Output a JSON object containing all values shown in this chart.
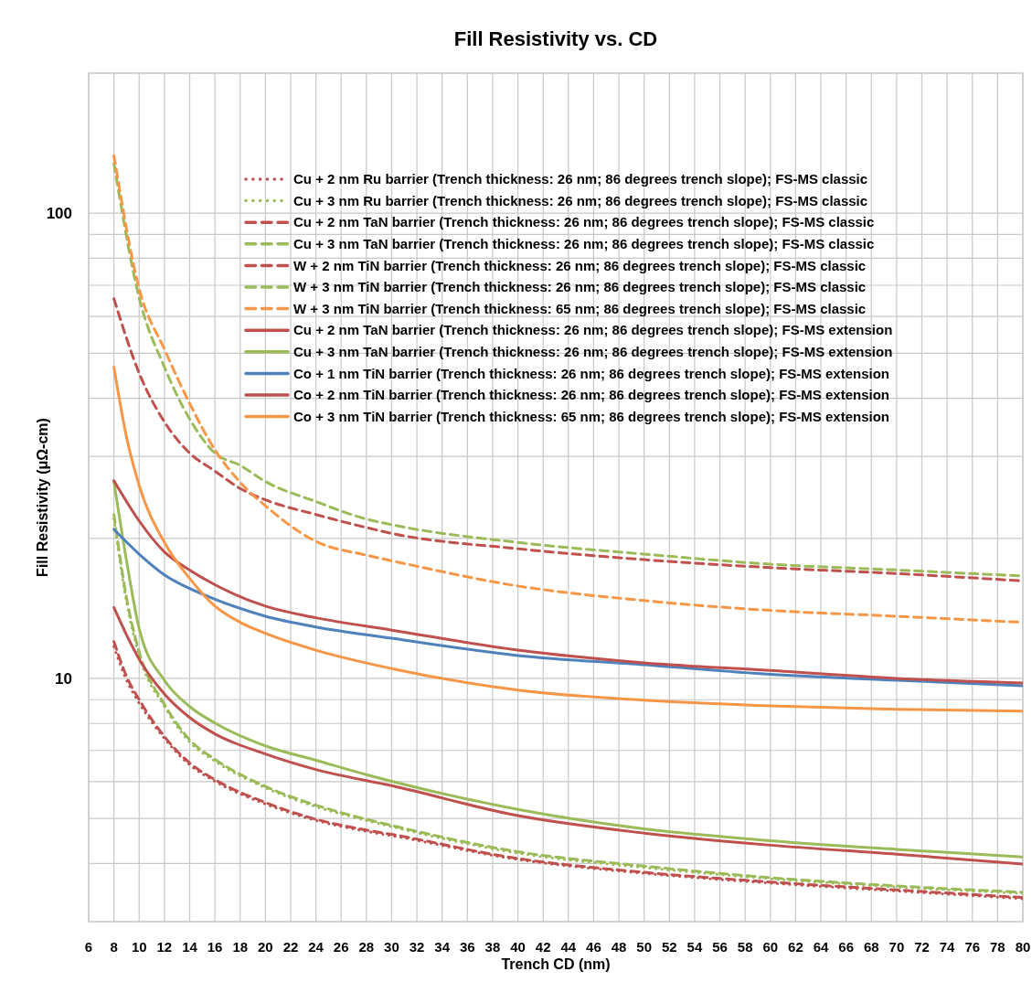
{
  "chart_data": {
    "type": "line",
    "title": "Fill Resistivity vs. CD",
    "xlabel": "Trench CD (nm)",
    "ylabel": "Fill Resistivity  (μΩ-cm)",
    "log": "y",
    "grid": true,
    "legend": "top right",
    "xlim": [
      6,
      80
    ],
    "xticks": [
      6,
      8,
      10,
      12,
      14,
      16,
      18,
      20,
      22,
      24,
      26,
      28,
      30,
      32,
      34,
      36,
      38,
      40,
      42,
      44,
      46,
      48,
      50,
      52,
      54,
      56,
      58,
      60,
      62,
      64,
      66,
      68,
      70,
      72,
      74,
      76,
      78,
      80
    ],
    "ylim": [
      3,
      200
    ],
    "yticks": [
      {
        "value": 3,
        "label": null
      },
      {
        "value": 4,
        "label": null
      },
      {
        "value": 5,
        "label": null
      },
      {
        "value": 6,
        "label": null
      },
      {
        "value": 7,
        "label": null
      },
      {
        "value": 8,
        "label": null
      },
      {
        "value": 9,
        "label": null
      },
      10,
      {
        "value": 20,
        "label": null
      },
      {
        "value": 30,
        "label": null
      },
      {
        "value": 40,
        "label": null
      },
      {
        "value": 50,
        "label": null
      },
      {
        "value": 60,
        "label": null
      },
      {
        "value": 70,
        "label": null
      },
      {
        "value": 80,
        "label": null
      },
      {
        "value": 90,
        "label": null
      },
      100,
      {
        "value": 200,
        "label": null
      }
    ],
    "series": [
      {
        "name": "Cu + 2 nm Ru barrier (Trench thickness: 26 nm; 86 degrees trench slope); FS-MS classic",
        "color": "#c0504d",
        "line_style": "dotted",
        "x": [
          8,
          9,
          10,
          12,
          14,
          16,
          20,
          24,
          28,
          30,
          40,
          50,
          60,
          70,
          80
        ],
        "values": [
          11.7,
          9.91,
          8.85,
          7.43,
          6.52,
          6.01,
          5.37,
          4.95,
          4.69,
          4.59,
          4.08,
          3.81,
          3.63,
          3.49,
          3.36
        ]
      },
      {
        "name": "Cu + 3 nm Ru barrier (Trench thickness: 26 nm; 86 degrees trench slope); FS-MS classic",
        "color": "#9bbb59",
        "line_style": "dotted",
        "x": [
          8,
          9,
          10,
          12,
          14,
          16,
          20,
          24,
          28,
          30,
          40,
          50,
          60,
          70,
          80
        ],
        "values": [
          22.0,
          14.6,
          11.2,
          8.7,
          7.3,
          6.64,
          5.82,
          5.3,
          4.95,
          4.8,
          4.21,
          3.92,
          3.71,
          3.56,
          3.45
        ]
      },
      {
        "name": "Cu + 2 nm TaN barrier (Trench thickness: 26 nm; 86 degrees trench slope); FS-MS classic",
        "color": "#c0504d",
        "line_style": "dashed",
        "x": [
          8,
          9,
          10,
          12,
          14,
          16,
          20,
          24,
          28,
          30,
          40,
          50,
          60,
          70,
          80
        ],
        "values": [
          12.0,
          10.1,
          9.0,
          7.5,
          6.58,
          6.06,
          5.41,
          4.98,
          4.72,
          4.62,
          4.1,
          3.83,
          3.65,
          3.51,
          3.38
        ]
      },
      {
        "name": "Cu + 3 nm TaN barrier (Trench thickness: 26 nm; 86 degrees trench slope); FS-MS classic",
        "color": "#9bbb59",
        "line_style": "dashed",
        "x": [
          8,
          9,
          10,
          12,
          14,
          16,
          20,
          24,
          28,
          30,
          40,
          50,
          60,
          70,
          80
        ],
        "values": [
          22.5,
          14.9,
          11.4,
          8.8,
          7.38,
          6.7,
          5.86,
          5.34,
          4.98,
          4.83,
          4.24,
          3.95,
          3.73,
          3.58,
          3.47
        ]
      },
      {
        "name": "W + 2 nm TiN barrier (Trench thickness: 26 nm; 86 degrees trench slope); FS-MS classic",
        "color": "#c0504d",
        "line_style": "dashed",
        "x": [
          8,
          10,
          12,
          14,
          16,
          18,
          20,
          24,
          28,
          30,
          40,
          50,
          60,
          70,
          80
        ],
        "values": [
          65.5,
          45.3,
          35.6,
          30.5,
          27.9,
          25.6,
          24.2,
          22.5,
          21.1,
          20.5,
          19.0,
          18.0,
          17.3,
          16.8,
          16.2
        ]
      },
      {
        "name": "W + 3 nm TiN barrier (Trench thickness: 26 nm; 86 degrees trench slope); FS-MS classic",
        "color": "#9bbb59",
        "line_style": "dashed",
        "x": [
          8,
          10,
          12,
          14,
          16,
          18,
          20,
          24,
          28,
          30,
          40,
          50,
          60,
          70,
          80
        ],
        "values": [
          128,
          65.8,
          46.7,
          36.1,
          30.5,
          28.7,
          26.5,
          24.0,
          22.0,
          21.4,
          19.6,
          18.5,
          17.6,
          17.1,
          16.6
        ]
      },
      {
        "name": "W + 3 nm TiN barrier (Trench thickness: 65 nm; 86 degrees trench slope); FS-MS classic",
        "color": "#f79646",
        "line_style": "dashed",
        "x": [
          8,
          10,
          12,
          14,
          16,
          18,
          20,
          24,
          28,
          30,
          40,
          50,
          60,
          70,
          80
        ],
        "values": [
          133,
          68.8,
          51,
          39,
          31,
          26.4,
          23.5,
          19.7,
          18.4,
          17.9,
          15.8,
          14.7,
          14.0,
          13.6,
          13.2
        ]
      },
      {
        "name": "Cu + 2 nm TaN barrier (Trench thickness: 26 nm; 86 degrees trench slope); FS-MS extension",
        "color": "#c0504d",
        "line_style": "solid",
        "x": [
          8,
          9,
          10,
          12,
          14,
          16,
          20,
          24,
          30,
          40,
          50,
          60,
          70,
          80
        ],
        "values": [
          14.2,
          12.4,
          11.0,
          9.26,
          8.24,
          7.6,
          6.88,
          6.37,
          5.88,
          5.07,
          4.65,
          4.38,
          4.19,
          3.99
        ]
      },
      {
        "name": "Cu + 3 nm TaN barrier (Trench thickness: 26 nm; 86 degrees trench slope); FS-MS extension",
        "color": "#9bbb59",
        "line_style": "solid",
        "x": [
          8,
          9,
          10,
          12,
          14,
          16,
          20,
          24,
          28,
          30,
          40,
          50,
          60,
          70,
          80
        ],
        "values": [
          26.5,
          17.9,
          12.8,
          9.91,
          8.7,
          8.02,
          7.16,
          6.67,
          6.21,
          6.01,
          5.23,
          4.75,
          4.48,
          4.29,
          4.13
        ]
      },
      {
        "name": "Co + 1 nm TiN barrier (Trench thickness: 26 nm; 86 degrees trench slope); FS-MS extension",
        "color": "#4f81bd",
        "line_style": "solid",
        "x": [
          8,
          10,
          12,
          14,
          16,
          20,
          24,
          30,
          40,
          50,
          60,
          70,
          80
        ],
        "values": [
          20.9,
          18.5,
          16.7,
          15.6,
          14.8,
          13.6,
          12.9,
          12.2,
          11.2,
          10.7,
          10.2,
          9.91,
          9.64
        ]
      },
      {
        "name": "Co + 2 nm TiN barrier (Trench thickness: 26 nm; 86 degrees trench slope); FS-MS extension",
        "color": "#c0504d",
        "line_style": "solid",
        "x": [
          8,
          10,
          12,
          14,
          16,
          20,
          24,
          30,
          40,
          50,
          60,
          70,
          80
        ],
        "values": [
          26.6,
          21.8,
          18.7,
          17.1,
          15.9,
          14.3,
          13.5,
          12.7,
          11.5,
          10.8,
          10.4,
          10.0,
          9.78
        ]
      },
      {
        "name": "Co + 3 nm TiN barrier (Trench thickness: 65 nm; 86 degrees trench slope); FS-MS extension",
        "color": "#f79646",
        "line_style": "solid",
        "x": [
          8,
          9,
          10,
          12,
          14,
          16,
          18,
          20,
          24,
          30,
          40,
          50,
          60,
          70,
          80
        ],
        "values": [
          46.7,
          33,
          26,
          19.6,
          16.4,
          14.3,
          13.2,
          12.5,
          11.5,
          10.5,
          9.44,
          8.98,
          8.73,
          8.58,
          8.5
        ]
      }
    ]
  }
}
